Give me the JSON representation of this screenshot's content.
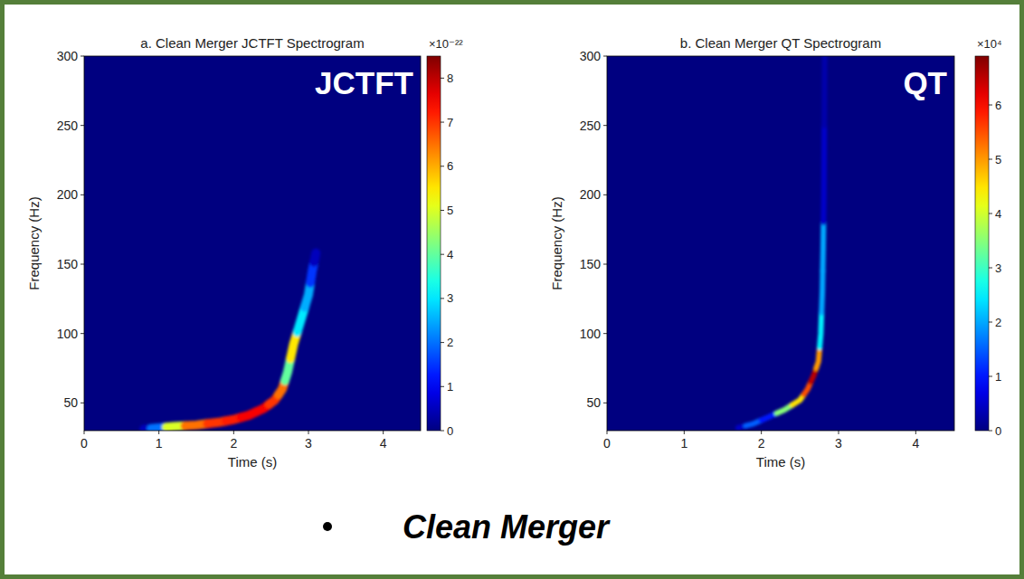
{
  "chart_data": [
    {
      "type": "spectrogram",
      "title": "a. Clean Merger JCTFT Spectrogram",
      "label": "JCTFT",
      "x_label": "Time (s)",
      "y_label": "Frequency (Hz)",
      "xlim": [
        0,
        4.5
      ],
      "ylim": [
        30,
        300
      ],
      "xticks": [
        0,
        1,
        2,
        3,
        4
      ],
      "yticks": [
        50,
        100,
        150,
        200,
        250,
        300
      ],
      "track": {
        "x": [
          0.8,
          1.0,
          1.2,
          1.5,
          1.8,
          2.0,
          2.2,
          2.4,
          2.55,
          2.65,
          2.72,
          2.8,
          2.9,
          3.0,
          3.05,
          3.1
        ],
        "y": [
          31,
          32,
          33,
          34,
          36,
          38,
          41,
          46,
          52,
          60,
          72,
          92,
          110,
          128,
          145,
          158
        ],
        "values": [
          0.5,
          2,
          5,
          6.5,
          7,
          7.2,
          7.5,
          7.5,
          7,
          6.5,
          4,
          5.5,
          3,
          2.5,
          1.5,
          0.5
        ]
      },
      "colorbar": {
        "range": [
          0,
          8.5
        ],
        "ticks": [
          0,
          1,
          2,
          3,
          4,
          5,
          6,
          7,
          8
        ],
        "multiplier": "×10⁻²²"
      }
    },
    {
      "type": "spectrogram",
      "title": "b. Clean Merger QT Spectrogram",
      "label": "QT",
      "x_label": "Time (s)",
      "y_label": "Frequency (Hz)",
      "xlim": [
        0,
        4.5
      ],
      "ylim": [
        30,
        300
      ],
      "xticks": [
        0,
        1,
        2,
        3,
        4
      ],
      "yticks": [
        50,
        100,
        150,
        200,
        250,
        300
      ],
      "track": {
        "x": [
          1.7,
          1.9,
          2.1,
          2.3,
          2.5,
          2.6,
          2.68,
          2.74,
          2.77,
          2.79,
          2.8,
          2.81,
          2.82
        ],
        "y": [
          32,
          35,
          40,
          45,
          52,
          60,
          70,
          80,
          100,
          130,
          160,
          200,
          300
        ],
        "values": [
          0.5,
          1.5,
          1,
          3.5,
          4.5,
          5.5,
          6.5,
          5,
          2.5,
          2,
          2,
          0.5,
          0.3
        ]
      },
      "colorbar": {
        "range": [
          0,
          6.9
        ],
        "ticks": [
          0,
          1,
          2,
          3,
          4,
          5,
          6
        ],
        "multiplier": "×10⁴"
      }
    }
  ],
  "caption": "Clean Merger"
}
